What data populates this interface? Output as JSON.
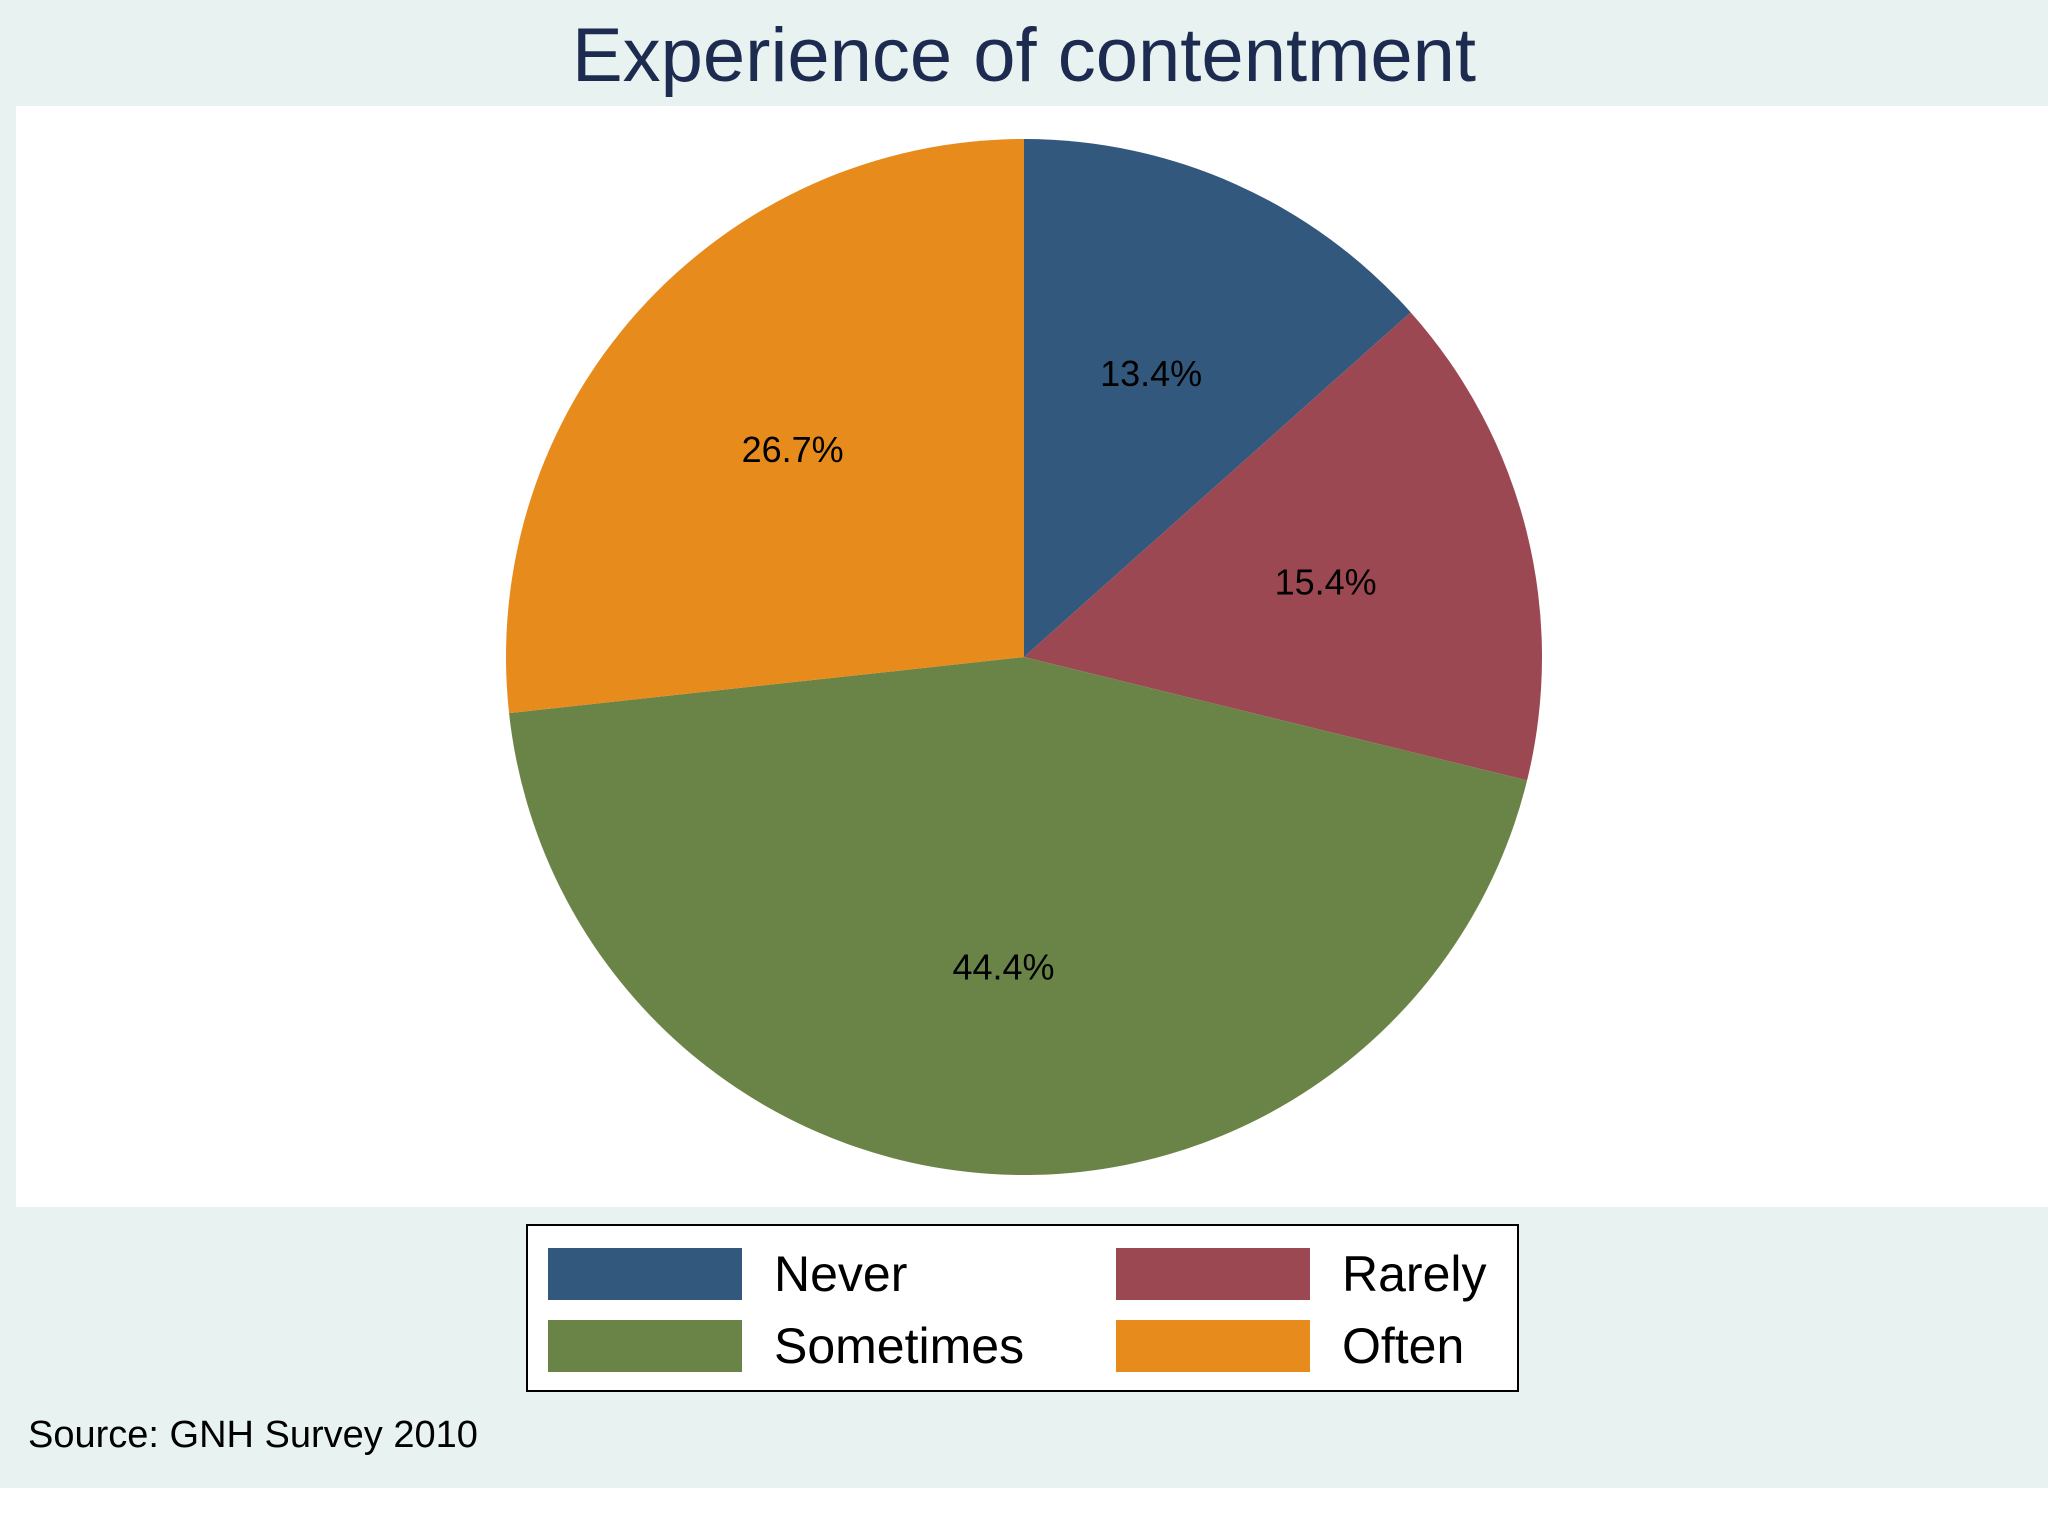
{
  "chart_data": {
    "type": "pie",
    "title": "Experience of contentment",
    "start": "12 o'clock",
    "direction": "clockwise",
    "slices": [
      {
        "name": "Never",
        "value": 13.4,
        "label": "13.4%",
        "color": "#33587d"
      },
      {
        "name": "Rarely",
        "value": 15.4,
        "label": "15.4%",
        "color": "#9c4852"
      },
      {
        "name": "Sometimes",
        "value": 44.4,
        "label": "44.4%",
        "color": "#6a8448"
      },
      {
        "name": "Often",
        "value": 26.7,
        "label": "26.7%",
        "color": "#e68b1c"
      }
    ],
    "legend": {
      "placement": "bottom",
      "columns": 2,
      "entries": [
        "Never",
        "Rarely",
        "Sometimes",
        "Often"
      ]
    },
    "note": "Source: GNH Survey 2010"
  },
  "colors": {
    "background": "#e8f2f1",
    "plot_background": "#ffffff",
    "title": "#1c2b4f"
  }
}
